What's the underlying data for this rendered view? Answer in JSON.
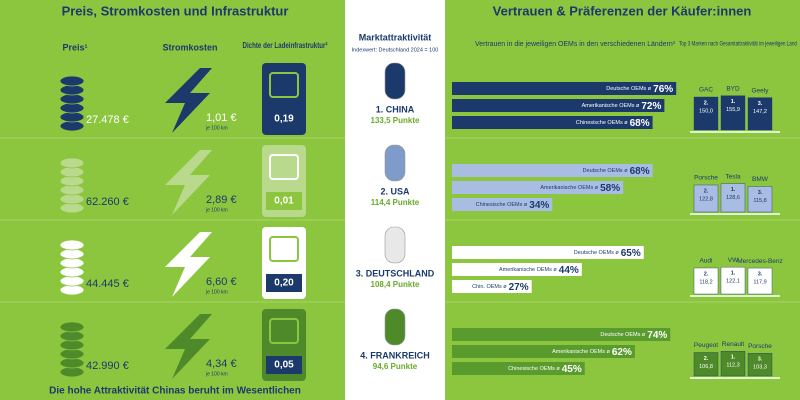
{
  "left": {
    "title": "Preis, Stromkosten und Infrastruktur",
    "headers": [
      "Preis¹",
      "Stromkosten",
      "Dichte der Ladeinfrastruktur²"
    ],
    "unit_note": "je 100 km",
    "rows": [
      {
        "price": "27.478 €",
        "cost": "1,01 €",
        "density": "0,19"
      },
      {
        "price": "62.260 €",
        "cost": "2,89 €",
        "density": "0,01"
      },
      {
        "price": "44.445 €",
        "cost": "6,60 €",
        "density": "0,20"
      },
      {
        "price": "42.990 €",
        "cost": "4,34 €",
        "density": "0,05"
      }
    ],
    "footer": "Die hohe Attraktivität Chinas beruht im Wesentlichen"
  },
  "center": {
    "title": "Marktattraktivität",
    "subtitle": "Indexwert: Deutschland 2024 = 100",
    "countries": [
      {
        "name": "1. CHINA",
        "points": "133,5 Punkte"
      },
      {
        "name": "2. USA",
        "points": "114,4 Punkte"
      },
      {
        "name": "3. DEUTSCHLAND",
        "points": "108,4 Punkte"
      },
      {
        "name": "4. FRANKREICH",
        "points": "94,6 Punkte"
      }
    ]
  },
  "right": {
    "title": "Vertrauen & Präferenzen der Käufer:innen",
    "trust_header": "Vertrauen in die jeweiligen OEMs in den verschiedenen Ländern³",
    "brands_header": "Top 3 Marken nach Gesamtattraktivität im jeweiligen Land",
    "groups": [
      {
        "bars": [
          {
            "label": "Deutsche OEMs ø",
            "value": 76,
            "value_label": "76%"
          },
          {
            "label": "Amerikanische OEMs ø",
            "value": 72,
            "value_label": "72%"
          },
          {
            "label": "Chinesische OEMs ø",
            "value": 68,
            "value_label": "68%"
          }
        ],
        "brands": [
          {
            "name": "BYD",
            "rank": "1.",
            "value": 155.9,
            "value_label": "155,9"
          },
          {
            "name": "GAC",
            "rank": "2.",
            "value": 150.0,
            "value_label": "150,0"
          },
          {
            "name": "Geely",
            "rank": "3.",
            "value": 147.2,
            "value_label": "147,2"
          }
        ]
      },
      {
        "bars": [
          {
            "label": "Deutsche OEMs ø",
            "value": 68,
            "value_label": "68%"
          },
          {
            "label": "Amerikanische OEMs ø",
            "value": 58,
            "value_label": "58%"
          },
          {
            "label": "Chinesische OEMs ø",
            "value": 34,
            "value_label": "34%"
          }
        ],
        "brands": [
          {
            "name": "Tesla",
            "rank": "1.",
            "value": 128.6,
            "value_label": "128,6"
          },
          {
            "name": "Porsche",
            "rank": "2.",
            "value": 122.8,
            "value_label": "122,8"
          },
          {
            "name": "BMW",
            "rank": "3.",
            "value": 115.8,
            "value_label": "115,8"
          }
        ]
      },
      {
        "bars": [
          {
            "label": "Deutsche OEMs ø",
            "value": 65,
            "value_label": "65%"
          },
          {
            "label": "Amerikanische OEMs ø",
            "value": 44,
            "value_label": "44%"
          },
          {
            "label": "Chin. OEMs ø",
            "value": 27,
            "value_label": "27%"
          }
        ],
        "brands": [
          {
            "name": "VW",
            "rank": "1.",
            "value": 122.1,
            "value_label": "122,1"
          },
          {
            "name": "Audi",
            "rank": "2.",
            "value": 118.2,
            "value_label": "118,2"
          },
          {
            "name": "Mercedes-Benz",
            "rank": "3.",
            "value": 117.9,
            "value_label": "117,9"
          }
        ]
      },
      {
        "bars": [
          {
            "label": "Deutsche OEMs ø",
            "value": 74,
            "value_label": "74%"
          },
          {
            "label": "Amerikanische OEMs ø",
            "value": 62,
            "value_label": "62%"
          },
          {
            "label": "Chinesische OEMs ø",
            "value": 45,
            "value_label": "45%"
          }
        ],
        "brands": [
          {
            "name": "Renault",
            "rank": "1.",
            "value": 112.3,
            "value_label": "112,3"
          },
          {
            "name": "Peugeot",
            "rank": "2.",
            "value": 106.8,
            "value_label": "106,8"
          },
          {
            "name": "Porsche",
            "rank": "3.",
            "value": 103.3,
            "value_label": "103,3"
          }
        ]
      }
    ]
  }
}
